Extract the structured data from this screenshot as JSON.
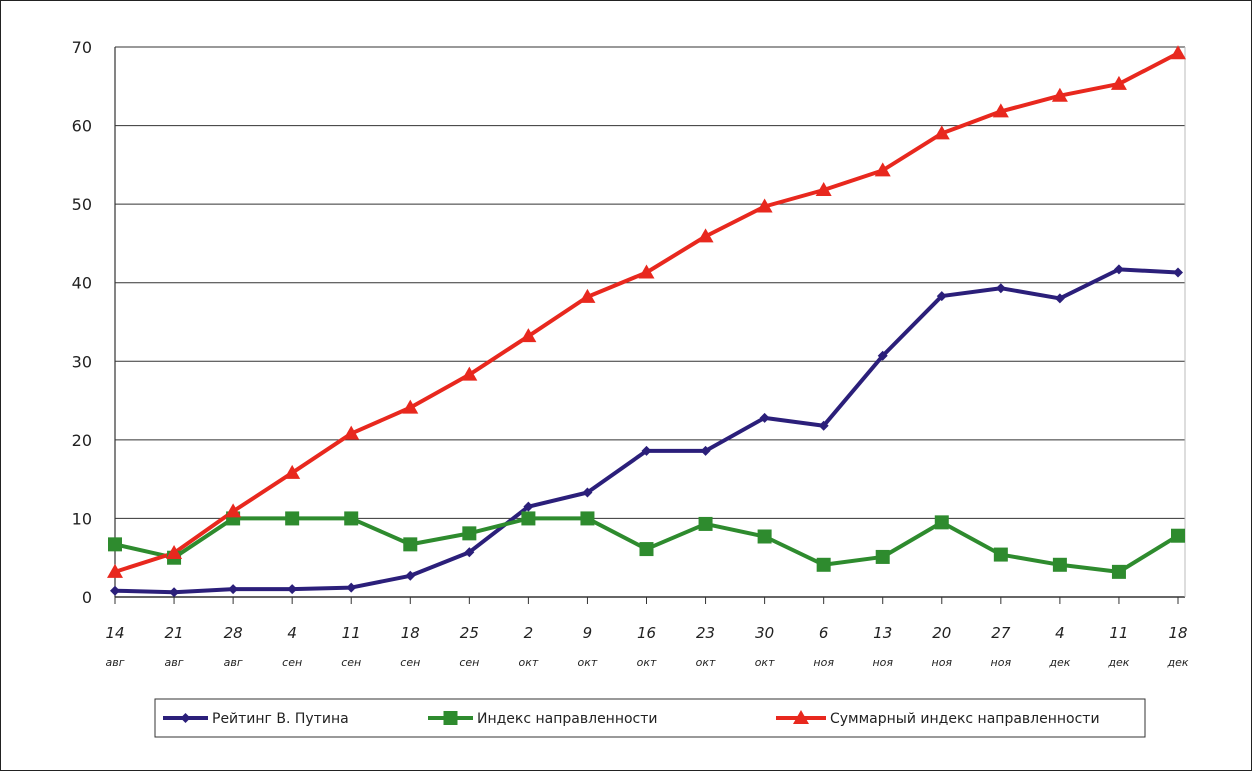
{
  "chart_data": {
    "type": "line",
    "title": "",
    "xlabel": "",
    "ylabel": "",
    "ylim": [
      0,
      70
    ],
    "yticks": [
      0,
      10,
      20,
      30,
      40,
      50,
      60,
      70
    ],
    "grid": true,
    "legend_position": "bottom",
    "categories": [
      {
        "day": "14",
        "month": "авг"
      },
      {
        "day": "21",
        "month": "авг"
      },
      {
        "day": "28",
        "month": "авг"
      },
      {
        "day": "4",
        "month": "сен"
      },
      {
        "day": "11",
        "month": "сен"
      },
      {
        "day": "18",
        "month": "сен"
      },
      {
        "day": "25",
        "month": "сен"
      },
      {
        "day": "2",
        "month": "окт"
      },
      {
        "day": "9",
        "month": "окт"
      },
      {
        "day": "16",
        "month": "окт"
      },
      {
        "day": "23",
        "month": "окт"
      },
      {
        "day": "30",
        "month": "окт"
      },
      {
        "day": "6",
        "month": "ноя"
      },
      {
        "day": "13",
        "month": "ноя"
      },
      {
        "day": "20",
        "month": "ноя"
      },
      {
        "day": "27",
        "month": "ноя"
      },
      {
        "day": "4",
        "month": "дек"
      },
      {
        "day": "11",
        "month": "дек"
      },
      {
        "day": "18",
        "month": "дек"
      }
    ],
    "series": [
      {
        "name": "Рейтинг В. Путина",
        "color": "#2b1f7a",
        "marker": "diamond",
        "values": [
          0.8,
          0.6,
          1.0,
          1.0,
          1.2,
          2.7,
          5.7,
          11.5,
          13.3,
          18.6,
          18.6,
          22.8,
          21.8,
          30.7,
          38.3,
          39.3,
          38.0,
          41.7,
          41.3
        ]
      },
      {
        "name": "Индекс направленности",
        "color": "#2e8b2e",
        "marker": "square",
        "values": [
          6.7,
          5.0,
          10.0,
          10.0,
          10.0,
          6.7,
          8.1,
          10.0,
          10.0,
          6.1,
          9.3,
          7.7,
          4.1,
          5.1,
          9.5,
          5.4,
          4.1,
          3.2,
          7.8
        ]
      },
      {
        "name": "Суммарный индекс направленности",
        "color": "#e8281e",
        "marker": "triangle",
        "values": [
          3.2,
          5.6,
          10.9,
          15.8,
          20.8,
          24.1,
          28.3,
          33.2,
          38.2,
          41.3,
          45.9,
          49.7,
          51.8,
          54.3,
          59.0,
          61.8,
          63.8,
          65.3,
          69.2
        ]
      }
    ]
  }
}
